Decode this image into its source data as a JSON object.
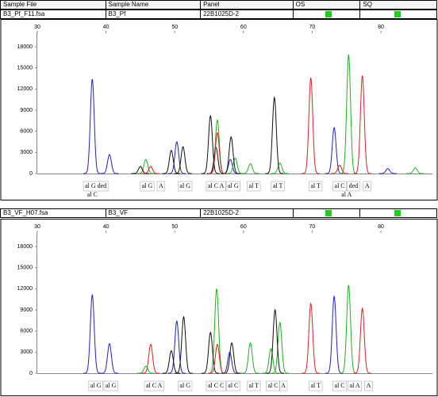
{
  "header": {
    "columns": [
      "Sample File",
      "Sample Name",
      "Panel",
      "OS",
      "SQ"
    ]
  },
  "panels": [
    {
      "file": "B3_Pf_F11.fsa",
      "name": "B3_Pf",
      "panel": "22B1025D-2",
      "xlim": [
        30,
        87.5
      ],
      "xticks": [
        30,
        40,
        50,
        60,
        70,
        80
      ],
      "ylim": [
        0,
        20000
      ],
      "yticks": [
        0,
        3000,
        6000,
        9000,
        12000,
        15000,
        18000
      ],
      "series": [
        {
          "color": "#2020d0",
          "x": [
            38,
            40.5,
            50.3,
            58.1,
            73.2,
            81
          ],
          "values": [
            13400,
            2700,
            4500,
            2000,
            6500,
            700
          ]
        },
        {
          "color": "#20b020",
          "x": [
            45.8,
            56.2,
            58.8,
            61,
            65.3,
            75.3,
            85
          ],
          "values": [
            2000,
            7600,
            2200,
            1400,
            1500,
            16900,
            800
          ]
        },
        {
          "color": "#101010",
          "x": [
            45,
            49.5,
            51.2,
            55.2,
            56,
            58.2,
            64.5
          ],
          "values": [
            1000,
            3300,
            3800,
            8200,
            3700,
            5200,
            10800
          ]
        },
        {
          "color": "#e02020",
          "x": [
            46.5,
            56.2,
            69.8,
            74,
            77.3
          ],
          "values": [
            1000,
            5800,
            13600,
            1200,
            13900
          ]
        }
      ],
      "alleles": [
        {
          "x": 38.5,
          "text": "al G ded"
        },
        {
          "x": 46,
          "text": "al G"
        },
        {
          "x": 48,
          "text": "A"
        },
        {
          "x": 51.5,
          "text": "al G"
        },
        {
          "x": 56,
          "text": "al C A"
        },
        {
          "x": 58.5,
          "text": "al G"
        },
        {
          "x": 61.5,
          "text": "al T"
        },
        {
          "x": 65,
          "text": "al T"
        },
        {
          "x": 70.5,
          "text": "al T"
        },
        {
          "x": 74,
          "text": "al C"
        },
        {
          "x": 76,
          "text": "ded"
        },
        {
          "x": 78,
          "text": "A"
        }
      ],
      "alleles2": [
        {
          "x": 38,
          "text": "al C"
        },
        {
          "x": 75,
          "text": "al A"
        }
      ]
    },
    {
      "file": "B3_VF_H07.fsa",
      "name": "B3_VF",
      "panel": "22B1025D-2",
      "xlim": [
        30,
        87.5
      ],
      "xticks": [
        30,
        40,
        50,
        60,
        70,
        80
      ],
      "ylim": [
        0,
        20000
      ],
      "yticks": [
        0,
        3000,
        6000,
        9000,
        12000,
        15000,
        18000
      ],
      "series": [
        {
          "color": "#2020d0",
          "x": [
            38,
            40.5,
            50.3,
            58,
            73.2
          ],
          "values": [
            11100,
            4200,
            7400,
            3000,
            10900
          ]
        },
        {
          "color": "#20b020",
          "x": [
            45.8,
            56.1,
            61,
            64,
            65.3,
            75.3
          ],
          "values": [
            1000,
            12000,
            4300,
            3500,
            7200,
            12500
          ]
        },
        {
          "color": "#101010",
          "x": [
            49.5,
            51.3,
            55.2,
            58.3,
            64.6
          ],
          "values": [
            3200,
            8000,
            5800,
            4300,
            9000
          ]
        },
        {
          "color": "#e02020",
          "x": [
            46.5,
            56.2,
            69.8,
            77.3
          ],
          "values": [
            4100,
            4100,
            9900,
            9200
          ]
        }
      ],
      "alleles": [
        {
          "x": 38.5,
          "text": "al G"
        },
        {
          "x": 40.7,
          "text": "al G"
        },
        {
          "x": 47,
          "text": "al C A"
        },
        {
          "x": 51.5,
          "text": "al G"
        },
        {
          "x": 56,
          "text": "al C C"
        },
        {
          "x": 58.5,
          "text": "al C"
        },
        {
          "x": 61.5,
          "text": "al T"
        },
        {
          "x": 64.3,
          "text": "al C"
        },
        {
          "x": 65.8,
          "text": "A"
        },
        {
          "x": 70.5,
          "text": "al T"
        },
        {
          "x": 74,
          "text": "al C"
        },
        {
          "x": 76.2,
          "text": "al A"
        },
        {
          "x": 78.2,
          "text": "A"
        }
      ],
      "alleles2": []
    }
  ]
}
